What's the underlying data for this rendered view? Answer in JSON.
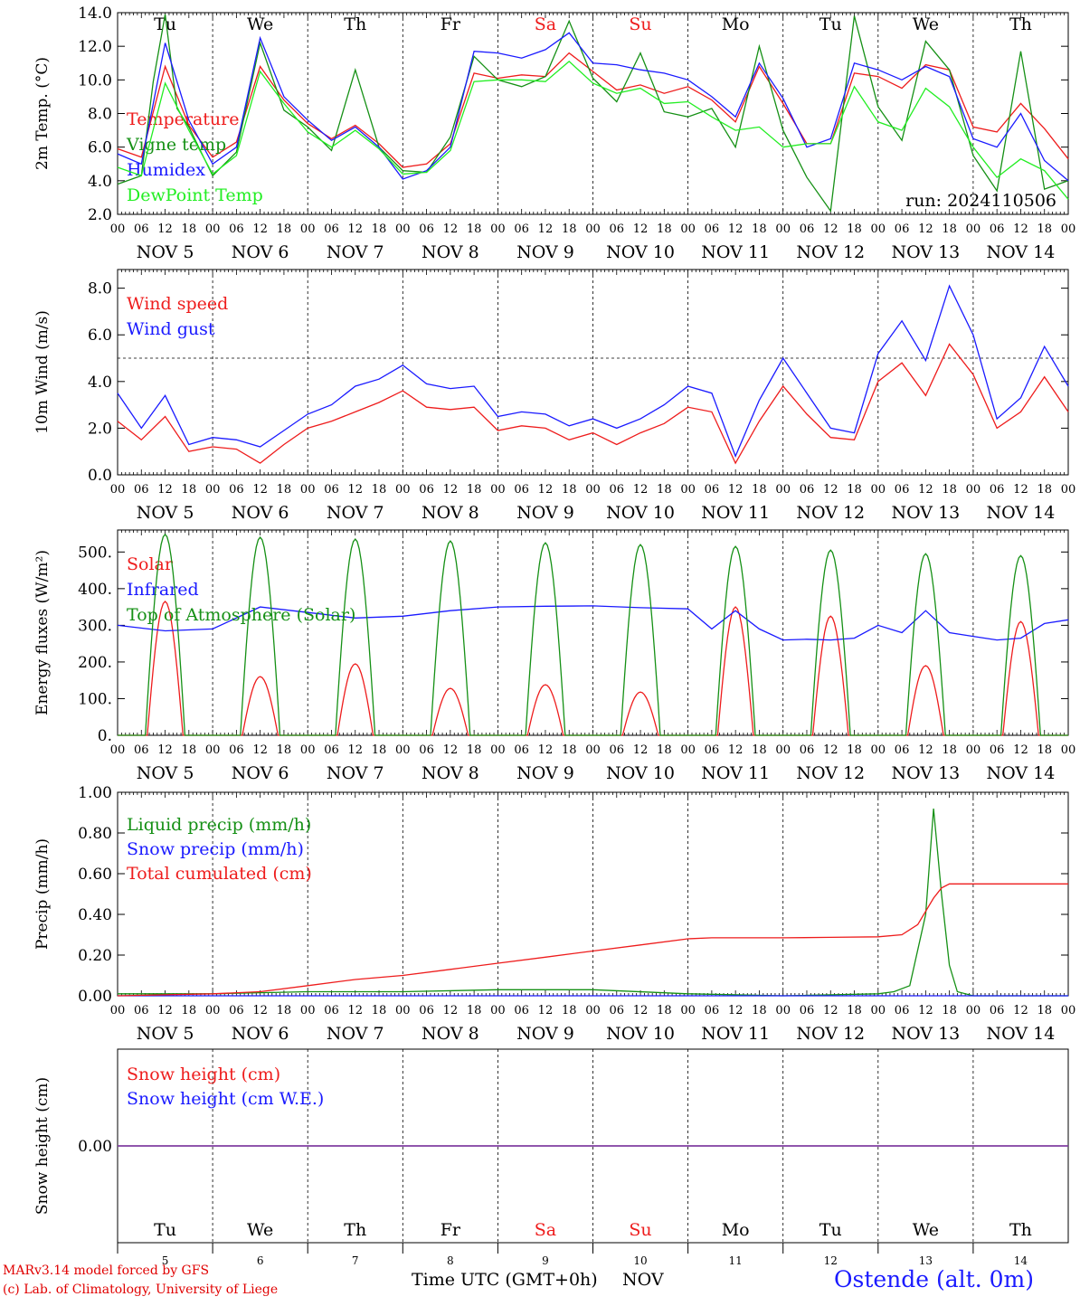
{
  "colors": {
    "red": "#ee1c1c",
    "green": "#159015",
    "blue": "#1a1aff",
    "lightgreen": "#22ee22",
    "purple": "#8040a0"
  },
  "days": [
    {
      "dow": "Tu",
      "date": "NOV  5",
      "num": "5",
      "weekend": false
    },
    {
      "dow": "We",
      "date": "NOV  6",
      "num": "6",
      "weekend": false
    },
    {
      "dow": "Th",
      "date": "NOV  7",
      "num": "7",
      "weekend": false
    },
    {
      "dow": "Fr",
      "date": "NOV  8",
      "num": "8",
      "weekend": false
    },
    {
      "dow": "Sa",
      "date": "NOV  9",
      "num": "9",
      "weekend": true
    },
    {
      "dow": "Su",
      "date": "NOV 10",
      "num": "10",
      "weekend": true
    },
    {
      "dow": "Mo",
      "date": "NOV 11",
      "num": "11",
      "weekend": false
    },
    {
      "dow": "Tu",
      "date": "NOV 12",
      "num": "12",
      "weekend": false
    },
    {
      "dow": "We",
      "date": "NOV 13",
      "num": "13",
      "weekend": false
    },
    {
      "dow": "Th",
      "date": "NOV 14",
      "num": "14",
      "weekend": false
    }
  ],
  "hour_ticks": [
    "00",
    "06",
    "12",
    "18"
  ],
  "footer": {
    "model": "MARv3.14 model forced by GFS",
    "credit": "(c) Lab. of Climatology, University of Liege",
    "time_label": "Time UTC (GMT+0h)",
    "month": "NOV",
    "station": "Ostende (alt. 0m)"
  },
  "chart_data": [
    {
      "type": "line",
      "ylabel": "2m Temp. (°C)",
      "ylim": [
        2,
        14
      ],
      "yticks": [
        "2.0",
        "4.0",
        "6.0",
        "8.0",
        "10.0",
        "12.0",
        "14.0"
      ],
      "annotation": "run: 2024110506",
      "x_unit": "hours from 2024-11-05 00 UTC",
      "series": [
        {
          "name": "Temperature",
          "color": "red",
          "x": [
            0,
            6,
            12,
            18,
            24,
            30,
            36,
            42,
            48,
            54,
            60,
            66,
            72,
            78,
            84,
            90,
            96,
            102,
            108,
            114,
            120,
            126,
            132,
            138,
            144,
            150,
            156,
            162,
            168,
            174,
            180,
            186,
            192,
            198,
            204,
            210,
            216,
            222,
            228,
            234,
            240
          ],
          "values": [
            5.9,
            5.4,
            10.8,
            7.3,
            5.4,
            6.3,
            10.8,
            8.8,
            7.4,
            6.5,
            7.3,
            6.2,
            4.8,
            5.0,
            6.2,
            10.4,
            10.1,
            10.3,
            10.2,
            11.6,
            10.5,
            9.4,
            9.7,
            9.2,
            9.6,
            8.8,
            7.5,
            10.8,
            8.6,
            6.2,
            6.2,
            10.4,
            10.2,
            9.5,
            10.9,
            10.6,
            7.2,
            6.9,
            8.6,
            7.1,
            5.3
          ]
        },
        {
          "name": "Vigne temp",
          "color": "green",
          "x": [
            0,
            6,
            9,
            12,
            15,
            18,
            24,
            30,
            36,
            42,
            48,
            54,
            60,
            66,
            72,
            78,
            84,
            90,
            96,
            102,
            108,
            114,
            120,
            126,
            132,
            138,
            144,
            150,
            156,
            162,
            168,
            174,
            180,
            186,
            192,
            198,
            204,
            210,
            216,
            222,
            228,
            234,
            240
          ],
          "values": [
            3.8,
            4.3,
            9.9,
            13.9,
            8.3,
            7.2,
            4.3,
            5.7,
            12.2,
            8.2,
            7.2,
            5.8,
            10.6,
            6.0,
            4.6,
            4.5,
            6.6,
            11.4,
            10.0,
            9.6,
            10.2,
            13.5,
            10.1,
            8.7,
            11.6,
            8.1,
            7.8,
            8.3,
            6.0,
            12.0,
            7.0,
            4.2,
            2.2,
            13.8,
            8.4,
            6.4,
            12.3,
            10.6,
            5.5,
            3.4,
            11.7,
            3.5,
            4.0
          ]
        },
        {
          "name": "Humidex",
          "color": "blue",
          "x": [
            0,
            6,
            12,
            18,
            24,
            30,
            36,
            42,
            48,
            54,
            60,
            66,
            72,
            78,
            84,
            90,
            96,
            102,
            108,
            114,
            120,
            126,
            132,
            138,
            144,
            150,
            156,
            162,
            168,
            174,
            180,
            186,
            192,
            198,
            204,
            210,
            216,
            222,
            228,
            234,
            240
          ],
          "values": [
            5.6,
            5.0,
            12.2,
            7.6,
            5.0,
            6.0,
            12.5,
            9.0,
            7.6,
            6.4,
            7.2,
            6.0,
            4.1,
            4.6,
            6.0,
            11.7,
            11.6,
            11.3,
            11.8,
            12.8,
            11.0,
            10.9,
            10.6,
            10.4,
            10.0,
            9.0,
            7.8,
            11.0,
            8.9,
            6.0,
            6.5,
            11.0,
            10.6,
            10.0,
            10.8,
            10.2,
            6.5,
            6.0,
            8.0,
            5.2,
            4.0
          ]
        },
        {
          "name": "DewPoint Temp",
          "color": "lightgreen",
          "x": [
            0,
            6,
            12,
            18,
            24,
            30,
            36,
            42,
            48,
            54,
            60,
            66,
            72,
            78,
            84,
            90,
            96,
            102,
            108,
            114,
            120,
            126,
            132,
            138,
            144,
            150,
            156,
            162,
            168,
            174,
            180,
            186,
            192,
            198,
            204,
            210,
            216,
            222,
            228,
            234,
            240
          ],
          "values": [
            4.8,
            4.3,
            9.8,
            7.0,
            4.4,
            5.5,
            10.5,
            8.6,
            6.9,
            6.0,
            7.0,
            5.9,
            4.4,
            4.5,
            5.8,
            9.9,
            10.0,
            10.0,
            9.9,
            11.1,
            9.8,
            9.2,
            9.5,
            8.6,
            8.7,
            7.8,
            7.0,
            7.2,
            6.0,
            6.2,
            6.2,
            9.6,
            7.5,
            7.0,
            9.5,
            8.4,
            6.0,
            4.2,
            5.3,
            4.6,
            2.9
          ]
        }
      ]
    },
    {
      "type": "line",
      "ylabel": "10m Wind (m/s)",
      "ylim": [
        0,
        8.8
      ],
      "yticks": [
        "0.0",
        "2.0",
        "4.0",
        "6.0",
        "8.0"
      ],
      "reference_line": 5.0,
      "x_unit": "hours from 2024-11-05 00 UTC",
      "series": [
        {
          "name": "Wind speed",
          "color": "red",
          "x": [
            0,
            6,
            12,
            18,
            24,
            30,
            36,
            42,
            48,
            54,
            60,
            66,
            72,
            78,
            84,
            90,
            96,
            102,
            108,
            114,
            120,
            126,
            132,
            138,
            144,
            150,
            156,
            162,
            168,
            174,
            180,
            186,
            192,
            198,
            204,
            210,
            216,
            222,
            228,
            234,
            240
          ],
          "values": [
            2.3,
            1.5,
            2.5,
            1.0,
            1.2,
            1.1,
            0.5,
            1.3,
            2.0,
            2.3,
            2.7,
            3.1,
            3.6,
            2.9,
            2.8,
            2.9,
            1.9,
            2.1,
            2.0,
            1.5,
            1.8,
            1.3,
            1.8,
            2.2,
            2.9,
            2.7,
            0.5,
            2.3,
            3.8,
            2.6,
            1.6,
            1.5,
            4.0,
            4.8,
            3.4,
            5.6,
            4.3,
            2.0,
            2.7,
            4.2,
            2.7
          ]
        },
        {
          "name": "Wind gust",
          "color": "blue",
          "x": [
            0,
            6,
            12,
            18,
            24,
            30,
            36,
            42,
            48,
            54,
            60,
            66,
            72,
            78,
            84,
            90,
            96,
            102,
            108,
            114,
            120,
            126,
            132,
            138,
            144,
            150,
            156,
            162,
            168,
            174,
            180,
            186,
            192,
            198,
            204,
            210,
            216,
            222,
            228,
            234,
            240
          ],
          "values": [
            3.5,
            2.0,
            3.4,
            1.3,
            1.6,
            1.5,
            1.2,
            1.9,
            2.6,
            3.0,
            3.8,
            4.1,
            4.7,
            3.9,
            3.7,
            3.8,
            2.5,
            2.7,
            2.6,
            2.1,
            2.4,
            2.0,
            2.4,
            3.0,
            3.8,
            3.5,
            0.8,
            3.2,
            5.0,
            3.5,
            2.0,
            1.8,
            5.2,
            6.6,
            4.9,
            8.1,
            6.0,
            2.4,
            3.3,
            5.5,
            3.8
          ]
        }
      ]
    },
    {
      "type": "line",
      "ylabel": "Energy fluxes (W/m²)",
      "ylim": [
        0,
        560
      ],
      "yticks": [
        "0.",
        "100.",
        "200.",
        "300.",
        "400.",
        "500."
      ],
      "x_unit": "hours from 2024-11-05 00 UTC",
      "series": [
        {
          "name": "Solar",
          "color": "red",
          "peaks": [
            365,
            160,
            195,
            128,
            138,
            118,
            350,
            325,
            190,
            310
          ]
        },
        {
          "name": "Infrared",
          "color": "blue",
          "x": [
            0,
            12,
            24,
            36,
            48,
            60,
            72,
            84,
            96,
            108,
            120,
            132,
            144,
            150,
            156,
            162,
            168,
            174,
            180,
            186,
            192,
            198,
            204,
            210,
            216,
            222,
            228,
            234,
            240
          ],
          "values": [
            300,
            285,
            290,
            350,
            335,
            320,
            325,
            340,
            350,
            352,
            353,
            348,
            345,
            290,
            340,
            290,
            260,
            262,
            260,
            265,
            300,
            280,
            340,
            280,
            270,
            260,
            265,
            305,
            315
          ]
        },
        {
          "name": "Top of Atmosphere (Solar)",
          "color": "green",
          "peaks": [
            548,
            540,
            535,
            530,
            525,
            520,
            515,
            505,
            495,
            490
          ]
        }
      ]
    },
    {
      "type": "line",
      "ylabel": "Precip (mm/h)",
      "ylim": [
        0,
        1.0
      ],
      "yticks": [
        "0.00",
        "0.20",
        "0.40",
        "0.60",
        "0.80",
        "1.00"
      ],
      "x_unit": "hours from 2024-11-05 00 UTC",
      "series": [
        {
          "name": "Liquid precip (mm/h)",
          "color": "green",
          "x": [
            0,
            24,
            48,
            72,
            96,
            120,
            144,
            168,
            192,
            196,
            200,
            204,
            206,
            208,
            210,
            212,
            216,
            240
          ],
          "values": [
            0.01,
            0.01,
            0.02,
            0.02,
            0.03,
            0.03,
            0.01,
            0.0,
            0.01,
            0.02,
            0.05,
            0.4,
            0.92,
            0.5,
            0.15,
            0.02,
            0.0,
            0.0
          ]
        },
        {
          "name": "Snow precip (mm/h)",
          "color": "blue",
          "x": [
            0,
            240
          ],
          "values": [
            0,
            0
          ]
        },
        {
          "name": "Total cumulated (cm)",
          "color": "red",
          "x": [
            0,
            24,
            36,
            48,
            60,
            72,
            84,
            96,
            108,
            120,
            132,
            144,
            150,
            156,
            168,
            180,
            192,
            198,
            202,
            206,
            208,
            210,
            240
          ],
          "values": [
            0.0,
            0.01,
            0.02,
            0.05,
            0.08,
            0.1,
            0.13,
            0.16,
            0.19,
            0.22,
            0.25,
            0.28,
            0.285,
            0.285,
            0.285,
            0.287,
            0.29,
            0.3,
            0.35,
            0.48,
            0.53,
            0.55,
            0.55
          ]
        }
      ]
    },
    {
      "type": "line",
      "ylabel": "Snow height (cm)",
      "ylim": [
        -1,
        1
      ],
      "yticks": [
        "0.00"
      ],
      "x_unit": "hours from 2024-11-05 00 UTC",
      "series": [
        {
          "name": "Snow height (cm)",
          "color": "red",
          "x": [
            0,
            240
          ],
          "values": [
            0,
            0
          ]
        },
        {
          "name": "Snow height (cm W.E.)",
          "color": "blue",
          "x": [
            0,
            240
          ],
          "values": [
            0,
            0
          ]
        }
      ]
    }
  ]
}
